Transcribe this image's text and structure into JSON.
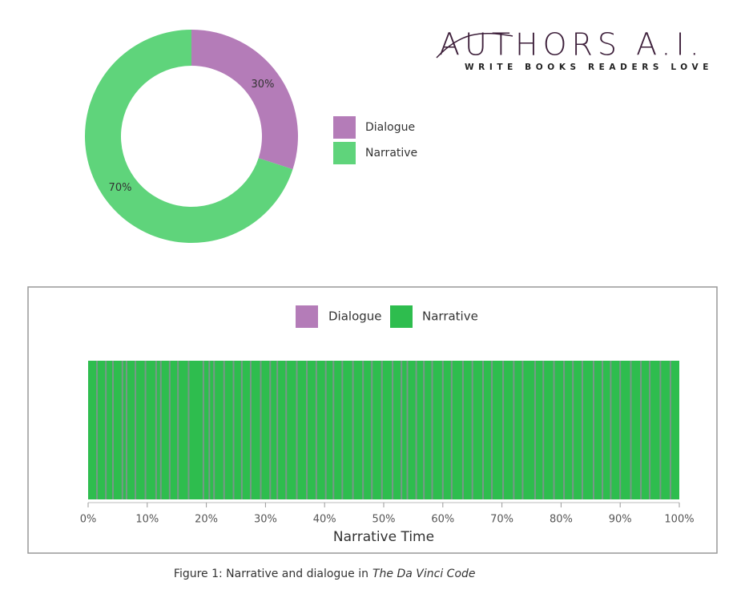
{
  "logo": {
    "name": "AUTHORS A.I.",
    "tagline": "WRITE BOOKS READERS LOVE"
  },
  "chart_data": [
    {
      "type": "pie",
      "categories": [
        "Dialogue",
        "Narrative"
      ],
      "values": [
        30,
        70
      ],
      "value_labels": [
        "30%",
        "70%"
      ],
      "colors": [
        "#b47cb8",
        "#5fd47b"
      ],
      "legend": "right"
    },
    {
      "type": "strip",
      "xlabel": "Narrative Time",
      "series": [
        {
          "name": "Dialogue",
          "color": "#b47cb8",
          "x": [
            1.5,
            3,
            4.2,
            5.8,
            6.5,
            8,
            9.7,
            11.5,
            12.3,
            13.8,
            15.2,
            17,
            19.5,
            20.5,
            21.3,
            23,
            24.6,
            26,
            27.5,
            29.2,
            30.8,
            32,
            33.5,
            35.3,
            37,
            38.6,
            40.2,
            41.5,
            43,
            44.8,
            46.5,
            48,
            49.7,
            51.5,
            53,
            54,
            55.5,
            56.8,
            58.2,
            60,
            61.5,
            63.4,
            65,
            66.8,
            68.3,
            70.2,
            72,
            73.5,
            75.6,
            77,
            78.8,
            80.5,
            82,
            83.6,
            85.5,
            87,
            88.4,
            90,
            91.8,
            93.5,
            95,
            96.8,
            98.5
          ]
        },
        {
          "name": "Narrative",
          "color": "#2ebd4e"
        }
      ],
      "xlim": [
        0,
        100
      ],
      "xticks": [
        {
          "value": 0,
          "label": "0%"
        },
        {
          "value": 10,
          "label": "10%"
        },
        {
          "value": 20,
          "label": "20%"
        },
        {
          "value": 30,
          "label": "30%"
        },
        {
          "value": 40,
          "label": "40%"
        },
        {
          "value": 50,
          "label": "50%"
        },
        {
          "value": 60,
          "label": "60%"
        },
        {
          "value": 70,
          "label": "70%"
        },
        {
          "value": 80,
          "label": "80%"
        },
        {
          "value": 90,
          "label": "90%"
        },
        {
          "value": 100,
          "label": "100%"
        }
      ],
      "legend": "top"
    }
  ],
  "caption": {
    "text": "Figure 1: Narrative and dialogue in",
    "title": "The Da Vinci Code"
  }
}
